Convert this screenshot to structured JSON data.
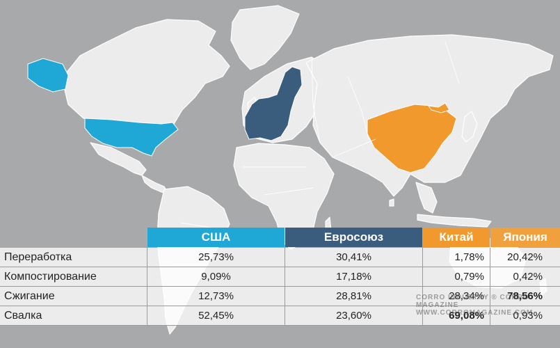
{
  "colors": {
    "usa": "#1fa8d6",
    "eu": "#3a5d7d",
    "china": "#f2992e",
    "japan_header": "#f0a03c",
    "land": "#ececec",
    "sea": "#a7a9ab"
  },
  "legend": {
    "usa": "США",
    "eu": "Евросоюз",
    "china": "Китай",
    "japan": "Япония"
  },
  "rows": [
    {
      "label": "Переработка",
      "usa": "25,73%",
      "eu": "30,41%",
      "china": "1,78%",
      "japan": "20,42%"
    },
    {
      "label": "Компостирование",
      "usa": "9,09%",
      "eu": "17,18%",
      "china": "0,79%",
      "japan": "0,42%"
    },
    {
      "label": "Сжигание",
      "usa": "12,73%",
      "eu": "28,81%",
      "china": "28,34%",
      "japan": "78,56%"
    },
    {
      "label": "Свалка",
      "usa": "52,45%",
      "eu": "23,60%",
      "china": "69,08%",
      "japan": "0,93%"
    }
  ],
  "watermark": {
    "line1": "CORRO  INDUSTRY  ®  CORRO  MAGAZINE",
    "line2": "WWW.CORROMAGAZINE.COM"
  }
}
